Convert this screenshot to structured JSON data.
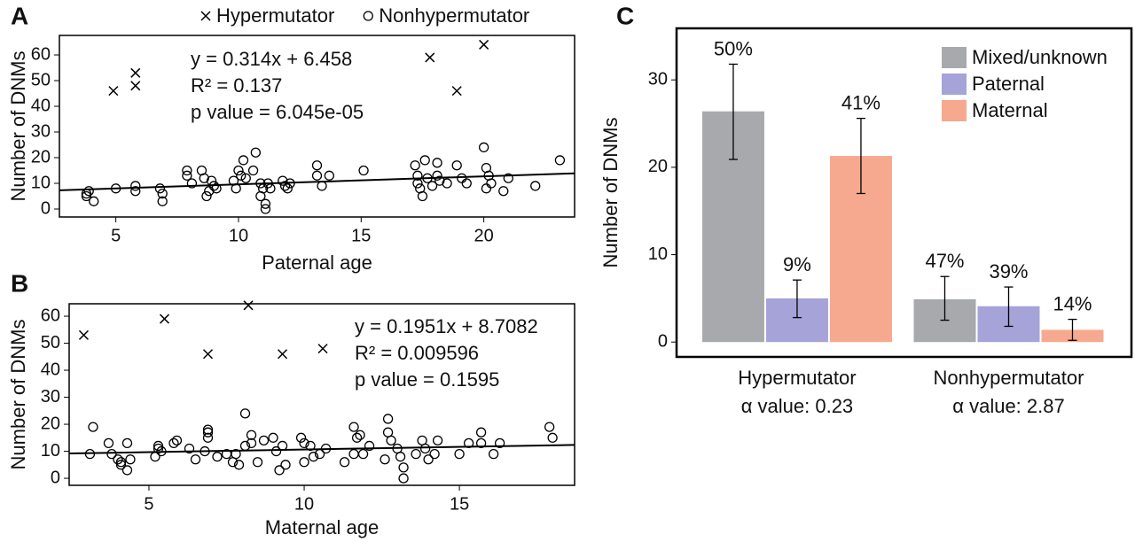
{
  "chart_data": [
    {
      "type": "scatter",
      "panel_label": "A",
      "xlabel": "Paternal age",
      "ylabel": "Number of DNMs",
      "xlim": [
        2.7,
        23.7
      ],
      "ylim": [
        -3.1,
        67.6
      ],
      "xticks": [
        5,
        10,
        15,
        20
      ],
      "yticks": [
        0,
        10,
        20,
        30,
        40,
        50,
        60
      ],
      "legend": "top",
      "annotations": [
        "y = 0.314x + 6.458",
        "R² = 0.137",
        "p value = 6.045e-05"
      ],
      "fit": {
        "slope": 0.314,
        "intercept": 6.458
      },
      "series": [
        {
          "name": "Hypermutator",
          "marker": "x",
          "color": "#000000",
          "x": [
            4.9,
            5.8,
            5.8,
            17.8,
            18.9,
            20
          ],
          "values": [
            46,
            53,
            48,
            59,
            46,
            64
          ]
        },
        {
          "name": "Nonhypermutator",
          "marker": "o",
          "color": "#000000",
          "x": [
            3.8,
            3.9,
            3.8,
            4.1,
            5,
            5.8,
            5.8,
            6.8,
            6.9,
            6.9,
            7.9,
            7.9,
            8.1,
            8.5,
            8.6,
            8.7,
            8.8,
            8.9,
            9,
            9.1,
            9.8,
            9.9,
            10,
            10.1,
            10.2,
            10.3,
            10.6,
            10.7,
            10.9,
            10.9,
            11,
            11.1,
            11.1,
            11.2,
            11.3,
            11.8,
            11.9,
            12,
            12.1,
            13.2,
            13.2,
            13.4,
            13.7,
            15.1,
            17.2,
            17.3,
            17.3,
            17.4,
            17.5,
            17.6,
            17.7,
            17.9,
            18.1,
            18.2,
            18.1,
            18.5,
            18.9,
            19.1,
            19.3,
            20,
            20.1,
            20.2,
            20.3,
            20.1,
            20.8,
            21,
            22.1,
            23.1
          ],
          "values": [
            6,
            7,
            5,
            3,
            8,
            9,
            7,
            8,
            6,
            3,
            15,
            13,
            10,
            15,
            12,
            5,
            7,
            11,
            9,
            8,
            11,
            8,
            15,
            13,
            19,
            12,
            15,
            22,
            10,
            5,
            8,
            2,
            0,
            10,
            8,
            11,
            9,
            8,
            10,
            17,
            13,
            9,
            13,
            15,
            17,
            13,
            10,
            8,
            5,
            19,
            12,
            9,
            18,
            11,
            13,
            10,
            17,
            12,
            10,
            24,
            16,
            13,
            10,
            8,
            7,
            12,
            9,
            19
          ]
        }
      ]
    },
    {
      "type": "scatter",
      "panel_label": "B",
      "xlabel": "Maternal age",
      "ylabel": "Number of DNMs",
      "xlim": [
        2.43,
        18.71
      ],
      "ylim": [
        -2.6,
        64.6
      ],
      "xticks": [
        5,
        10,
        15
      ],
      "yticks": [
        0,
        10,
        20,
        30,
        40,
        50,
        60
      ],
      "annotations": [
        "y = 0.1951x + 8.7082",
        "R² = 0.009596",
        "p value = 0.1595"
      ],
      "fit": {
        "slope": 0.1951,
        "intercept": 8.7082
      },
      "series": [
        {
          "marker": "x",
          "color": "#000000",
          "x": [
            2.9,
            5.5,
            6.9,
            8.2,
            9.3,
            10.6
          ],
          "values": [
            53,
            59,
            46,
            64,
            46,
            48
          ]
        },
        {
          "marker": "o",
          "color": "#000000",
          "x": [
            3.1,
            3.2,
            3.7,
            3.8,
            4,
            4.1,
            4.1,
            4.3,
            4.3,
            4.4,
            5.2,
            5.3,
            5.3,
            5.4,
            5.8,
            5.9,
            6.3,
            6.5,
            6.8,
            6.9,
            6.9,
            6.9,
            7.2,
            7.5,
            7.7,
            7.8,
            7.9,
            8.1,
            8.1,
            8.3,
            8.3,
            8.5,
            8.7,
            9,
            9.1,
            9.2,
            9.3,
            9.4,
            9.9,
            10,
            10,
            10.2,
            10.3,
            10.5,
            10.7,
            11.3,
            11.6,
            11.6,
            11.7,
            11.8,
            11.9,
            12.1,
            12.6,
            12.7,
            12.7,
            12.8,
            13,
            13.1,
            13.2,
            13.2,
            13.6,
            13.8,
            13.9,
            14,
            14.2,
            14.3,
            15,
            15.3,
            15.7,
            15.7,
            16.1,
            16.3,
            17.9,
            18
          ],
          "values": [
            9,
            19,
            13,
            9,
            7,
            6,
            5,
            13,
            3,
            7,
            8,
            11,
            12,
            10,
            13,
            14,
            11,
            7,
            10,
            18,
            15,
            17,
            8,
            9,
            6,
            9,
            5,
            12,
            24,
            16,
            13,
            6,
            14,
            15,
            10,
            3,
            12,
            5,
            15,
            13,
            6,
            12,
            8,
            9,
            11,
            6,
            9,
            19,
            15,
            16,
            9,
            12,
            7,
            22,
            17,
            14,
            11,
            8,
            4,
            0,
            9,
            14,
            11,
            7,
            9,
            14,
            9,
            13,
            17,
            13,
            9,
            13,
            19,
            15
          ]
        }
      ]
    },
    {
      "type": "bar",
      "panel_label": "C",
      "ylabel": "Number of DNMs",
      "categories": [
        "Hypermutator",
        "Nonhypermutator"
      ],
      "category_notes": [
        "α value: 0.23",
        "α value: 2.87"
      ],
      "ylim": [
        -1.7,
        35.9
      ],
      "yticks": [
        0,
        10,
        20,
        30
      ],
      "legend": "upper right",
      "series": [
        {
          "name": "Mixed/unknown",
          "color": "#a7a9ac",
          "values": [
            26.4,
            4.9
          ],
          "lower": [
            20.9,
            2.5
          ],
          "upper": [
            31.8,
            7.5
          ],
          "percent_labels": [
            "50%",
            "47%"
          ]
        },
        {
          "name": "Paternal",
          "color": "#a5a3d8",
          "values": [
            5.0,
            4.1
          ],
          "lower": [
            2.8,
            1.8
          ],
          "upper": [
            7.1,
            6.3
          ],
          "percent_labels": [
            "9%",
            "39%"
          ]
        },
        {
          "name": "Maternal",
          "color": "#f6a98e",
          "values": [
            21.3,
            1.4
          ],
          "lower": [
            17.0,
            0.2
          ],
          "upper": [
            25.6,
            2.6
          ],
          "percent_labels": [
            "41%",
            "14%"
          ]
        }
      ]
    }
  ]
}
